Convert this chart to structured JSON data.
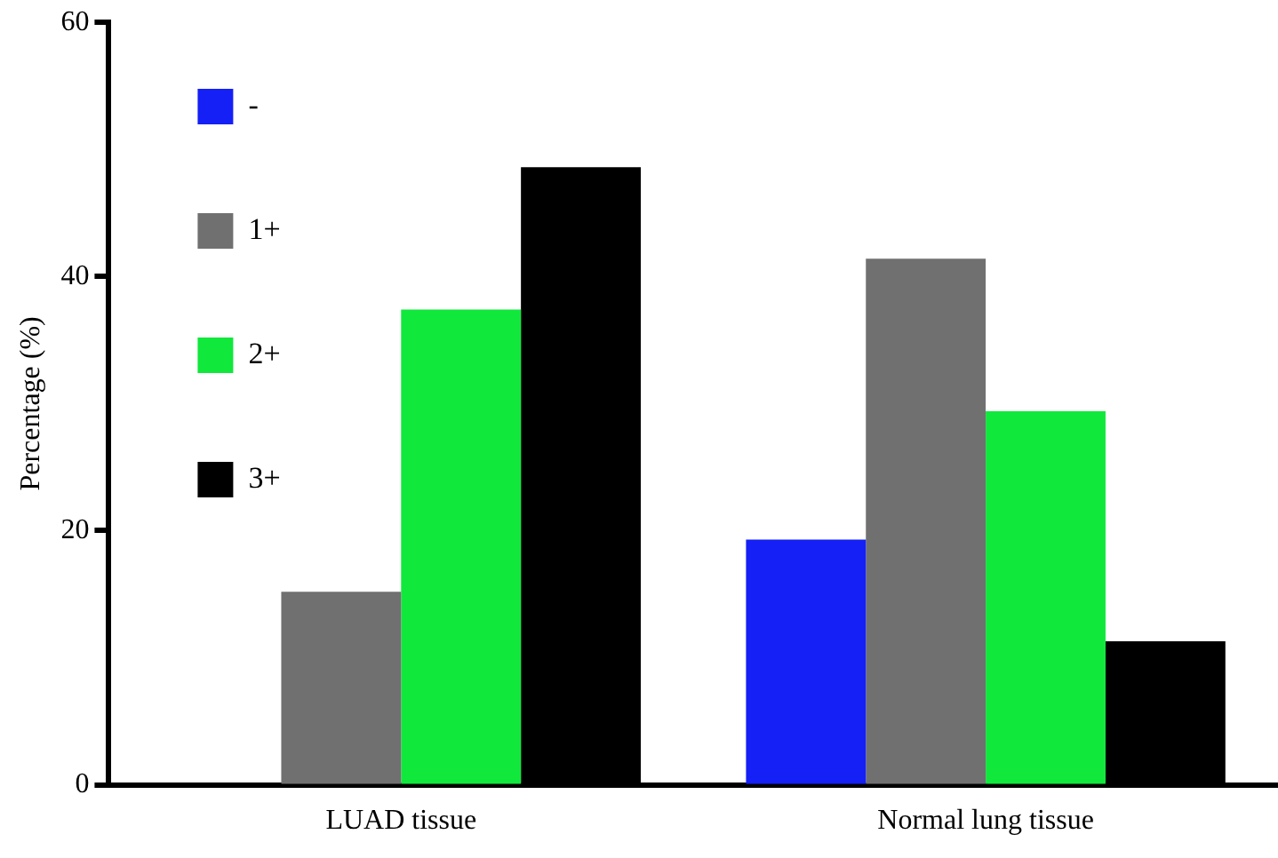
{
  "chart_data": {
    "type": "bar",
    "ylabel": "Percentage (%)",
    "categories": [
      "LUAD tissue",
      "Normal lung tissue"
    ],
    "series": [
      {
        "name": "-",
        "color": "#1420f5",
        "values": [
          0,
          19.3
        ]
      },
      {
        "name": "1+",
        "color": "#707070",
        "values": [
          15.2,
          41.4
        ]
      },
      {
        "name": "2+",
        "color": "#10e83c",
        "values": [
          37.4,
          29.4
        ]
      },
      {
        "name": "3+",
        "color": "#000000",
        "values": [
          48.6,
          11.3
        ]
      }
    ],
    "ylim": [
      0,
      60
    ],
    "yticks": [
      0,
      20,
      40,
      60
    ],
    "grid": false,
    "legend": "top left"
  }
}
